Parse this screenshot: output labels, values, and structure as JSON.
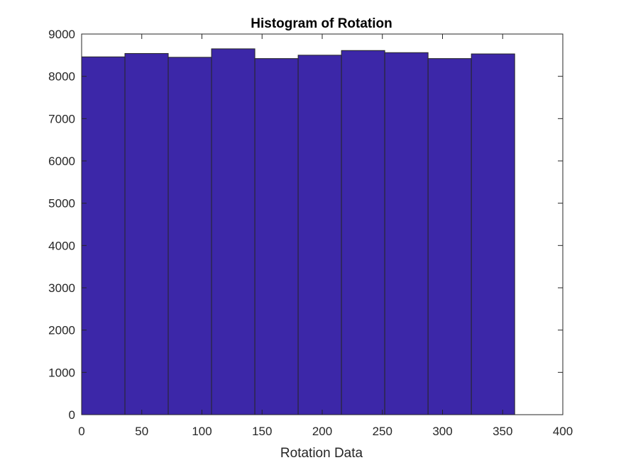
{
  "chart_data": {
    "type": "bar",
    "title": "Histogram of Rotation",
    "xlabel": "Rotation Data",
    "ylabel": "",
    "xlim": [
      0,
      400
    ],
    "ylim": [
      0,
      9000
    ],
    "xticks": [
      0,
      50,
      100,
      150,
      200,
      250,
      300,
      350,
      400
    ],
    "yticks": [
      0,
      1000,
      2000,
      3000,
      4000,
      5000,
      6000,
      7000,
      8000,
      9000
    ],
    "bin_edges": [
      0,
      36,
      72,
      108,
      144,
      180,
      216,
      252,
      288,
      324,
      360
    ],
    "values": [
      8460,
      8540,
      8450,
      8650,
      8420,
      8500,
      8610,
      8560,
      8420,
      8530
    ],
    "grid": false,
    "bar_color": "#3c27a8",
    "edge_color": "#262626"
  }
}
